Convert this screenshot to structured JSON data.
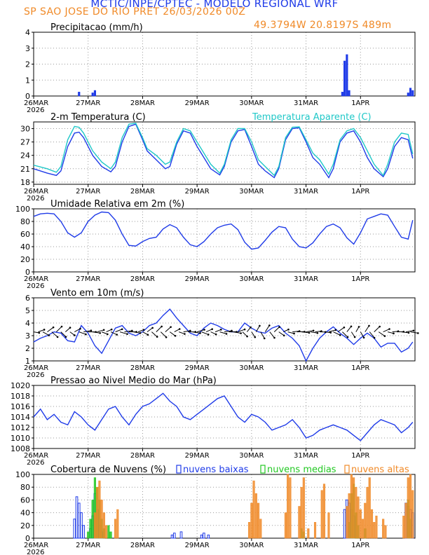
{
  "header": {
    "title": "MCTIC/INPE/CPTEC - MODELO REGIONAL WRF",
    "subtitle": "SP SAO JOSE DO RIO PRET  26/03/2026 00Z",
    "coords": "49.3794W 20.8197S 489m"
  },
  "colors": {
    "blue": "#1f3be8",
    "cyan": "#20c8c8",
    "orange": "#f08a28",
    "green": "#22c822",
    "black": "#000000",
    "grid": "#9a9a9a"
  },
  "xaxis": {
    "hours_total": 168,
    "ticks": [
      {
        "hour": 0,
        "label": "26MAR",
        "sub": "2026"
      },
      {
        "hour": 24,
        "label": "27MAR"
      },
      {
        "hour": 48,
        "label": "28MAR"
      },
      {
        "hour": 72,
        "label": "29MAR"
      },
      {
        "hour": 96,
        "label": "30MAR"
      },
      {
        "hour": 120,
        "label": "31MAR"
      },
      {
        "hour": 144,
        "label": "1APR"
      }
    ]
  },
  "chart_data": [
    {
      "id": "precip",
      "type": "bar",
      "title": "Precipitacao (mm/h)",
      "ylim": [
        0,
        4
      ],
      "yticks": [
        0,
        1,
        2,
        3,
        4
      ],
      "series": [
        {
          "name": "precipitacao",
          "color": "#1f3be8",
          "hours": [
            20,
            26,
            27,
            136,
            137,
            138,
            139,
            165,
            166,
            167
          ],
          "values": [
            0.25,
            0.2,
            0.35,
            0.25,
            2.2,
            2.6,
            0.35,
            0.2,
            0.5,
            0.35
          ]
        }
      ]
    },
    {
      "id": "temp",
      "type": "line",
      "title": "2-m Temperatura (C)",
      "legend": "Temperatura Aparente (C)",
      "ylim": [
        17.5,
        31.5
      ],
      "yticks": [
        18,
        21,
        24,
        27,
        30
      ],
      "series": [
        {
          "name": "2-m Temperatura",
          "color": "#1f3be8",
          "x": [
            0,
            6,
            10,
            12,
            15,
            18,
            20,
            22,
            26,
            30,
            34,
            36,
            39,
            42,
            45,
            48,
            50,
            54,
            58,
            60,
            63,
            66,
            69,
            72,
            75,
            78,
            82,
            84,
            87,
            90,
            93,
            96,
            99,
            102,
            106,
            108,
            111,
            114,
            117,
            120,
            123,
            126,
            130,
            132,
            135,
            138,
            141,
            144,
            147,
            150,
            154,
            156,
            159,
            162,
            165,
            167
          ],
          "y": [
            21,
            20,
            19.5,
            20.5,
            26,
            29,
            29.2,
            28,
            24,
            21.5,
            20.3,
            21.5,
            27,
            30.5,
            31,
            27.5,
            25,
            23,
            21,
            21.5,
            26.5,
            29.5,
            29,
            26,
            23.5,
            21,
            19.6,
            21.5,
            27,
            29.5,
            29.8,
            26,
            22,
            20.5,
            19,
            21,
            27.5,
            30,
            30.2,
            27,
            23.5,
            22,
            19,
            21,
            27,
            29,
            29.5,
            27,
            23.5,
            21,
            19.2,
            21,
            26,
            28,
            27.5,
            23.3
          ]
        },
        {
          "name": "Temperatura Aparente",
          "color": "#20c8c8",
          "x": [
            0,
            6,
            10,
            12,
            15,
            18,
            20,
            22,
            26,
            30,
            34,
            36,
            39,
            42,
            45,
            48,
            50,
            54,
            58,
            60,
            63,
            66,
            69,
            72,
            75,
            78,
            82,
            84,
            87,
            90,
            93,
            96,
            99,
            102,
            106,
            108,
            111,
            114,
            117,
            120,
            123,
            126,
            130,
            132,
            135,
            138,
            141,
            144,
            147,
            150,
            154,
            156,
            159,
            162,
            165,
            167
          ],
          "y": [
            21.8,
            21,
            20.2,
            21.5,
            27.5,
            30.5,
            30.3,
            29,
            25,
            22.5,
            21,
            22.5,
            28,
            31,
            31.2,
            28,
            25.5,
            24,
            22,
            22.5,
            27,
            30,
            29.5,
            27,
            24.5,
            22,
            20,
            22,
            27.5,
            30,
            30,
            27,
            23,
            21.5,
            19.5,
            21.5,
            28,
            30.3,
            30.4,
            27.5,
            24.5,
            23,
            19.8,
            22,
            27.5,
            29.5,
            30,
            28,
            25,
            22,
            19.5,
            22,
            27,
            29,
            28.7,
            24.3
          ]
        }
      ]
    },
    {
      "id": "rh",
      "type": "line",
      "title": "Umidade Relativa em 2m (%)",
      "ylim": [
        0,
        100
      ],
      "yticks": [
        0,
        20,
        40,
        60,
        80,
        100
      ],
      "series": [
        {
          "name": "Umidade Relativa",
          "color": "#1f3be8",
          "x": [
            0,
            3,
            6,
            9,
            12,
            15,
            18,
            21,
            24,
            27,
            30,
            33,
            36,
            39,
            42,
            45,
            48,
            51,
            54,
            57,
            60,
            63,
            66,
            69,
            72,
            75,
            78,
            81,
            84,
            87,
            90,
            93,
            96,
            99,
            102,
            105,
            108,
            111,
            114,
            117,
            120,
            123,
            126,
            129,
            132,
            135,
            138,
            141,
            144,
            147,
            150,
            153,
            156,
            159,
            162,
            165,
            167
          ],
          "y": [
            88,
            92,
            93,
            92,
            80,
            62,
            55,
            62,
            80,
            90,
            95,
            94,
            82,
            60,
            42,
            41,
            48,
            53,
            55,
            68,
            75,
            70,
            55,
            43,
            40,
            48,
            60,
            70,
            74,
            76,
            67,
            47,
            36,
            38,
            50,
            63,
            72,
            70,
            52,
            40,
            38,
            46,
            60,
            72,
            76,
            70,
            54,
            44,
            62,
            84,
            88,
            92,
            90,
            72,
            55,
            52,
            82
          ]
        }
      ]
    },
    {
      "id": "wind",
      "type": "line",
      "title": "Vento em 10m (m/s)",
      "ylim": [
        1,
        6
      ],
      "yticks": [
        1,
        2,
        3,
        4,
        5,
        6
      ],
      "series": [
        {
          "name": "Vento",
          "color": "#1f3be8",
          "x": [
            0,
            3,
            6,
            9,
            12,
            15,
            18,
            21,
            24,
            27,
            30,
            33,
            36,
            39,
            42,
            45,
            48,
            51,
            54,
            57,
            60,
            63,
            66,
            69,
            72,
            75,
            78,
            81,
            84,
            87,
            90,
            93,
            96,
            99,
            102,
            105,
            108,
            111,
            114,
            117,
            120,
            123,
            126,
            129,
            132,
            135,
            138,
            141,
            144,
            147,
            150,
            153,
            156,
            159,
            162,
            165,
            167
          ],
          "y": [
            2.5,
            2.8,
            3.0,
            3.3,
            3.2,
            2.6,
            2.5,
            3.8,
            3.2,
            2.2,
            1.6,
            2.6,
            3.6,
            3.8,
            3.2,
            3.0,
            3.3,
            3.8,
            4.0,
            4.6,
            5.1,
            4.4,
            3.8,
            3.2,
            3.0,
            3.6,
            4.0,
            3.8,
            3.5,
            3.3,
            3.3,
            4.0,
            3.6,
            3.3,
            3.2,
            3.6,
            3.8,
            3.2,
            2.8,
            2.2,
            1.0,
            2.0,
            2.8,
            3.3,
            3.7,
            3.2,
            2.8,
            2.3,
            2.8,
            3.2,
            2.8,
            2.1,
            2.4,
            2.4,
            1.7,
            2.0,
            2.5
          ]
        }
      ],
      "vectors_note": "wind barbs along y=3.3, direction varying"
    },
    {
      "id": "slp",
      "type": "line",
      "title": "Pressao ao Nivel Medio do Mar (hPa)",
      "ylim": [
        1008,
        1020
      ],
      "yticks": [
        1008,
        1010,
        1012,
        1014,
        1016,
        1018,
        1020
      ],
      "series": [
        {
          "name": "Pressao",
          "color": "#1f3be8",
          "x": [
            0,
            3,
            6,
            9,
            12,
            15,
            18,
            21,
            24,
            27,
            30,
            33,
            36,
            39,
            42,
            45,
            48,
            51,
            54,
            57,
            60,
            63,
            66,
            69,
            72,
            75,
            78,
            81,
            84,
            87,
            90,
            93,
            96,
            99,
            102,
            105,
            108,
            111,
            114,
            117,
            120,
            123,
            126,
            129,
            132,
            135,
            138,
            141,
            144,
            147,
            150,
            153,
            156,
            159,
            162,
            165,
            167
          ],
          "y": [
            1014,
            1015.5,
            1013.5,
            1014.5,
            1013,
            1012.5,
            1015,
            1014,
            1012.5,
            1011.5,
            1013.5,
            1015.5,
            1016,
            1014,
            1012.5,
            1014.5,
            1016,
            1016.5,
            1017.5,
            1018.5,
            1017,
            1016,
            1014,
            1013.5,
            1014.5,
            1015.5,
            1016.5,
            1017.5,
            1018,
            1016,
            1014,
            1013,
            1014.5,
            1014,
            1013,
            1011.5,
            1012,
            1012.5,
            1013.5,
            1012,
            1010,
            1010.5,
            1011.5,
            1012,
            1012.5,
            1012,
            1011.5,
            1010.5,
            1009.5,
            1011,
            1012.5,
            1013.5,
            1013,
            1012.5,
            1011,
            1012,
            1013
          ]
        }
      ]
    },
    {
      "id": "clouds",
      "type": "bar",
      "title": "Cobertura de Nuvens (%)",
      "ylim": [
        0,
        100
      ],
      "yticks": [
        0,
        20,
        40,
        60,
        80,
        100
      ],
      "legend": [
        "nuvens baixas",
        "nuvens medias",
        "nuvens altas"
      ],
      "series": [
        {
          "name": "nuvens baixas",
          "color": "#1f3be8",
          "hours": [
            18,
            19,
            20,
            21,
            22,
            25,
            26,
            27,
            28,
            29,
            30,
            61,
            62,
            65,
            74,
            75,
            77,
            137,
            138,
            139,
            140,
            141,
            164,
            165,
            166,
            167
          ],
          "values": [
            30,
            65,
            55,
            40,
            20,
            15,
            35,
            70,
            45,
            20,
            10,
            5,
            8,
            10,
            5,
            8,
            5,
            45,
            60,
            55,
            45,
            35,
            55,
            50,
            45,
            40
          ]
        },
        {
          "name": "nuvens medias",
          "color": "#22c822",
          "hours": [
            24,
            25,
            26,
            27,
            28,
            29,
            30,
            31,
            33,
            34,
            118,
            119,
            139,
            140,
            141,
            142,
            143,
            146,
            165,
            166
          ],
          "values": [
            10,
            30,
            60,
            95,
            80,
            60,
            30,
            15,
            20,
            10,
            15,
            10,
            25,
            70,
            85,
            40,
            20,
            15,
            60,
            30
          ]
        },
        {
          "name": "nuvens altas",
          "color": "#f08a28",
          "hours": [
            27,
            28,
            29,
            30,
            31,
            32,
            36,
            37,
            95,
            96,
            97,
            98,
            99,
            100,
            111,
            112,
            113,
            117,
            118,
            119,
            121,
            124,
            127,
            128,
            130,
            138,
            139,
            140,
            141,
            142,
            143,
            144,
            145,
            146,
            147,
            148,
            149,
            150,
            151,
            154,
            155,
            163,
            164,
            165,
            166,
            167
          ],
          "values": [
            40,
            80,
            90,
            60,
            40,
            20,
            30,
            45,
            25,
            55,
            90,
            70,
            55,
            30,
            40,
            100,
            95,
            50,
            80,
            95,
            15,
            25,
            75,
            85,
            40,
            50,
            70,
            100,
            95,
            80,
            65,
            45,
            30,
            55,
            80,
            95,
            45,
            25,
            35,
            30,
            20,
            35,
            55,
            95,
            100,
            75
          ]
        }
      ]
    }
  ]
}
